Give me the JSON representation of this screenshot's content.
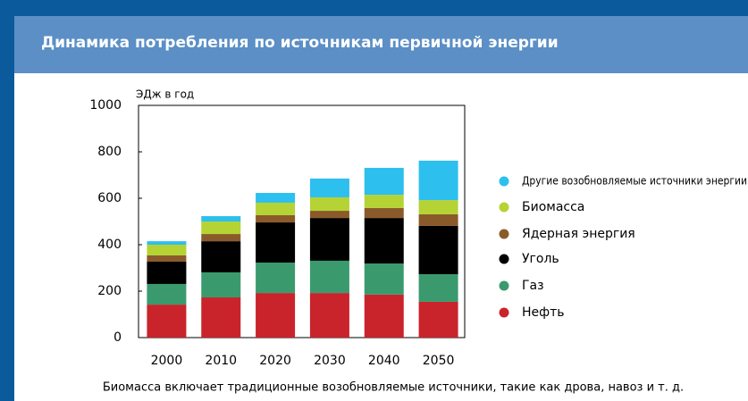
{
  "chart_data": {
    "type": "stacked_bar",
    "title": "Динамика потребления по источникам первичной энергии",
    "y_label": "ЭДж в год",
    "footnote": "Биомасса включает традиционные возобновляемые источники, такие как дрова, навоз и т. д.",
    "categories": [
      "2000",
      "2010",
      "2020",
      "2030",
      "2040",
      "2050"
    ],
    "series": [
      {
        "name": "Нефть",
        "color": "#c9242b",
        "values": [
          142,
          173,
          192,
          192,
          185,
          154
        ]
      },
      {
        "name": "Газ",
        "color": "#3a9a6e",
        "values": [
          89,
          108,
          131,
          139,
          134,
          119
        ]
      },
      {
        "name": "Уголь",
        "color": "#000000",
        "values": [
          96,
          134,
          173,
          184,
          196,
          208
        ]
      },
      {
        "name": "Ядерная энергия",
        "color": "#8b5a2b",
        "values": [
          27,
          31,
          31,
          31,
          43,
          50
        ]
      },
      {
        "name": "Биомасса",
        "color": "#b5d334",
        "values": [
          46,
          54,
          54,
          58,
          57,
          61
        ]
      },
      {
        "name": "Другие возобновляемые источники энергии",
        "color": "#2dbfee",
        "values": [
          15,
          23,
          42,
          81,
          116,
          170
        ]
      }
    ],
    "ylim": [
      0,
      1000
    ],
    "yticks": [
      0,
      200,
      400,
      600,
      800,
      1000
    ]
  }
}
